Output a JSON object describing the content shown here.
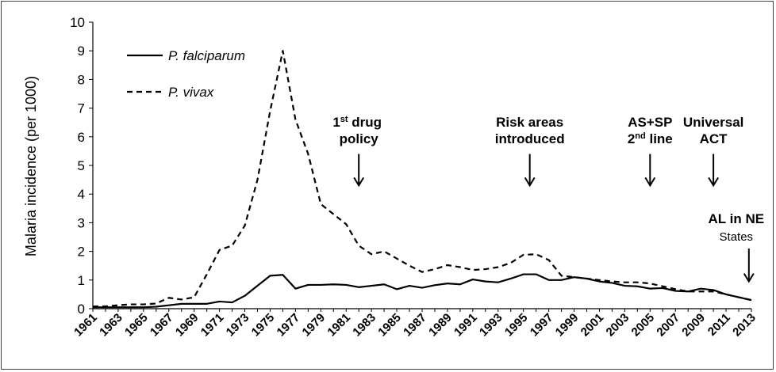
{
  "chart_data": {
    "type": "line",
    "ylabel": "Malaria incidence (per 1000)",
    "xlabel": "",
    "title": "",
    "ylim": [
      0,
      10
    ],
    "yticks": [
      0,
      1,
      2,
      3,
      4,
      5,
      6,
      7,
      8,
      9,
      10
    ],
    "x": [
      1961,
      1962,
      1963,
      1964,
      1965,
      1966,
      1967,
      1968,
      1969,
      1970,
      1971,
      1972,
      1973,
      1974,
      1975,
      1976,
      1977,
      1978,
      1979,
      1980,
      1981,
      1982,
      1983,
      1984,
      1985,
      1986,
      1987,
      1988,
      1989,
      1990,
      1991,
      1992,
      1993,
      1994,
      1995,
      1996,
      1997,
      1998,
      1999,
      2000,
      2001,
      2002,
      2003,
      2004,
      2005,
      2006,
      2007,
      2008,
      2009,
      2010,
      2011,
      2012,
      2013
    ],
    "xticks": [
      "1961",
      "1963",
      "1965",
      "1967",
      "1969",
      "1971",
      "1973",
      "1975",
      "1977",
      "1979",
      "1981",
      "1983",
      "1985",
      "1987",
      "1989",
      "1991",
      "1993",
      "1995",
      "1997",
      "1999",
      "2001",
      "2003",
      "2005",
      "2007",
      "2009",
      "2011",
      "2013"
    ],
    "legend_position": "top-left",
    "series": [
      {
        "name": "P. falciparum",
        "style": "solid",
        "values": [
          0.05,
          0.05,
          0.05,
          0.05,
          0.05,
          0.07,
          0.12,
          0.17,
          0.17,
          0.17,
          0.25,
          0.22,
          0.45,
          0.8,
          1.15,
          1.18,
          0.7,
          0.83,
          0.83,
          0.85,
          0.83,
          0.75,
          0.8,
          0.85,
          0.68,
          0.8,
          0.73,
          0.82,
          0.88,
          0.85,
          1.02,
          0.95,
          0.92,
          1.05,
          1.2,
          1.2,
          1.0,
          1.0,
          1.1,
          1.05,
          0.95,
          0.9,
          0.8,
          0.78,
          0.7,
          0.72,
          0.62,
          0.6,
          0.7,
          0.65,
          0.5,
          0.4,
          0.3
        ]
      },
      {
        "name": "P. vivax",
        "style": "dashed",
        "values": [
          0.08,
          0.08,
          0.12,
          0.15,
          0.15,
          0.18,
          0.38,
          0.32,
          0.4,
          1.2,
          2.05,
          2.2,
          2.9,
          4.5,
          6.9,
          9.0,
          6.6,
          5.4,
          3.65,
          3.3,
          2.95,
          2.2,
          1.9,
          2.0,
          1.75,
          1.5,
          1.28,
          1.38,
          1.52,
          1.45,
          1.35,
          1.38,
          1.45,
          1.6,
          1.88,
          1.9,
          1.7,
          1.15,
          1.1,
          1.05,
          1.0,
          0.95,
          0.92,
          0.92,
          0.88,
          0.78,
          0.68,
          0.6,
          0.6,
          0.6,
          0.5,
          0.4,
          0.3
        ]
      }
    ],
    "annotations": [
      {
        "lines": [
          "1",
          "st",
          " drug",
          "policy"
        ],
        "year": 1982,
        "arrow_from": 5.4,
        "arrow_to": 4.3
      },
      {
        "lines": [
          "Risk areas",
          "introduced"
        ],
        "year": 1995.5,
        "arrow_from": 5.4,
        "arrow_to": 4.3
      },
      {
        "lines": [
          "AS+SP",
          "2",
          "nd",
          " line"
        ],
        "year": 2005,
        "arrow_from": 5.4,
        "arrow_to": 4.3
      },
      {
        "lines": [
          "Universal",
          "ACT"
        ],
        "year": 2010,
        "arrow_from": 5.4,
        "arrow_to": 4.3
      },
      {
        "lines": [
          "AL in NE",
          "States"
        ],
        "year": 2012.8,
        "arrow_from": 2.1,
        "arrow_to": 0.95
      }
    ]
  }
}
